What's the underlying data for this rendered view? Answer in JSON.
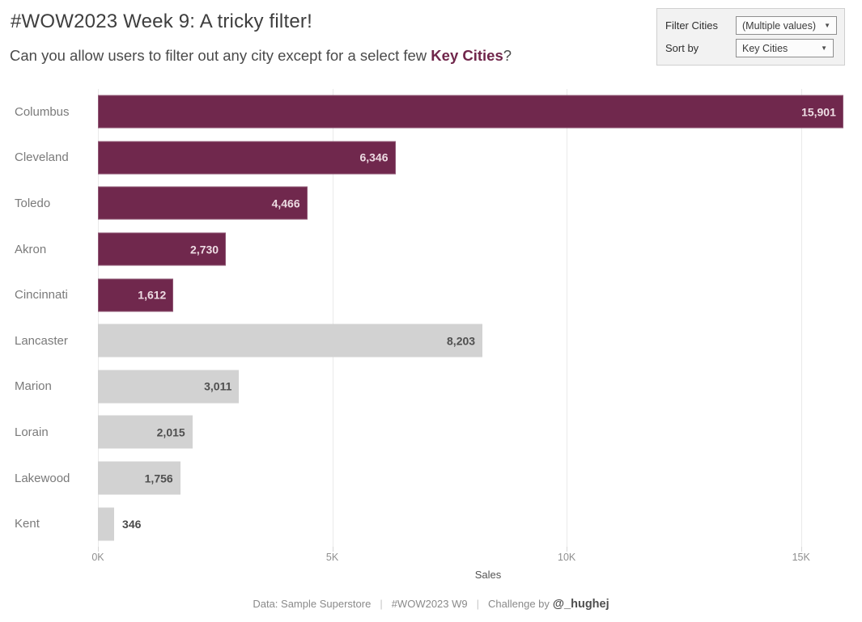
{
  "header": {
    "title": "#WOW2023 Week 9: A tricky filter!",
    "subtitle_prefix": "Can you allow users to filter out any city except for a select few ",
    "subtitle_highlight": "Key Cities",
    "subtitle_suffix": "?"
  },
  "filter_panel": {
    "filter_label": "Filter Cities",
    "filter_value": "(Multiple values)",
    "sort_label": "Sort by",
    "sort_value": "Key Cities",
    "dropdown_arrow": "▼"
  },
  "chart_data": {
    "type": "bar",
    "orientation": "horizontal",
    "categories": [
      "Columbus",
      "Cleveland",
      "Toledo",
      "Akron",
      "Cincinnati",
      "Lancaster",
      "Marion",
      "Lorain",
      "Lakewood",
      "Kent"
    ],
    "values": [
      15901,
      6346,
      4466,
      2730,
      1612,
      8203,
      3011,
      2015,
      1756,
      346
    ],
    "value_labels": [
      "15,901",
      "6,346",
      "4,466",
      "2,730",
      "1,612",
      "8,203",
      "3,011",
      "2,015",
      "1,756",
      "346"
    ],
    "is_key_city": [
      true,
      true,
      true,
      true,
      true,
      false,
      false,
      false,
      false,
      false
    ],
    "xlabel": "Sales",
    "x_ticks": [
      0,
      5000,
      10000,
      15000
    ],
    "x_tick_labels": [
      "0K",
      "5K",
      "10K",
      "15K"
    ],
    "xlim": [
      0,
      16300
    ],
    "grid": "vertical-only",
    "legend": "none",
    "colors": {
      "key_city_bar": "#70284D",
      "other_city_bar": "#D2D2D2",
      "key_value_label": "#EDDCE3",
      "other_value_label": "#4F4F4F",
      "outside_value_label": "#4A4A4A"
    }
  },
  "footer": {
    "source": "Data: Sample Superstore",
    "separator": "|",
    "tag": "#WOW2023 W9",
    "challenge_by": "Challenge by",
    "handle": "@_hughej"
  }
}
